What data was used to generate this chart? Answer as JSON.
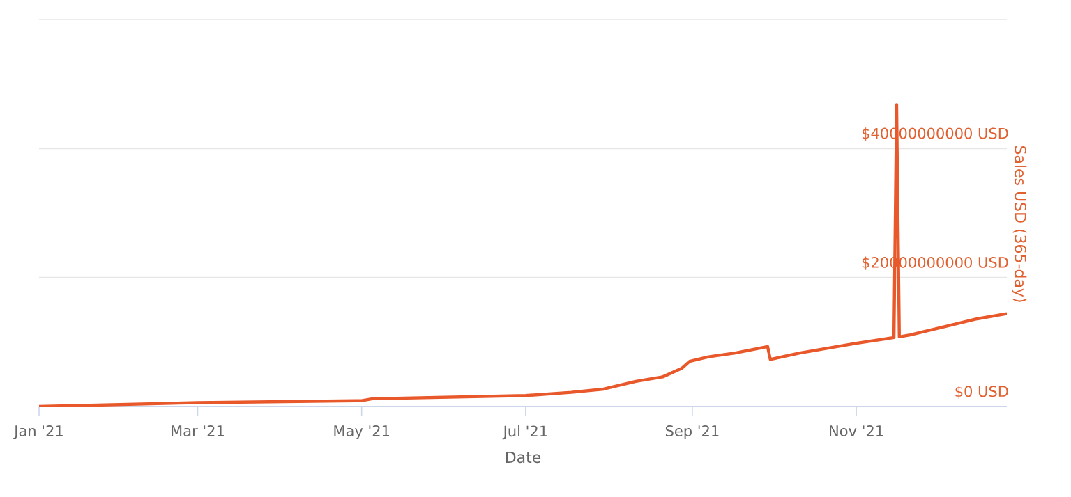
{
  "chart_data": {
    "type": "line",
    "xlabel": "Date",
    "y2label": "Sales USD (365-day)",
    "xlim": [
      "2021-01-01",
      "2021-12-27"
    ],
    "xticks": [
      {
        "value": "2021-01-01",
        "label": "Jan '21"
      },
      {
        "value": "2021-03-01",
        "label": "Mar '21"
      },
      {
        "value": "2021-05-01",
        "label": "May '21"
      },
      {
        "value": "2021-07-01",
        "label": "Jul '21"
      },
      {
        "value": "2021-09-01",
        "label": "Sep '21"
      },
      {
        "value": "2021-11-01",
        "label": "Nov '21"
      }
    ],
    "y2lim": [
      0,
      60000000000
    ],
    "y2ticks": [
      {
        "value": 0,
        "label": "$0 USD"
      },
      {
        "value": 20000000000,
        "label": "$20000000000 USD"
      },
      {
        "value": 40000000000,
        "label": "$40000000000 USD"
      },
      {
        "value": 60000000000,
        "label": null
      }
    ],
    "grid": "y",
    "marker": "none",
    "line_style": "solid",
    "series": [
      {
        "color": "#e8582a",
        "axis": "y2",
        "x": [
          "2021-01-01",
          "2021-03-01",
          "2021-05-01",
          "2021-05-05",
          "2021-07-01",
          "2021-07-18",
          "2021-07-30",
          "2021-08-11",
          "2021-08-21",
          "2021-08-28",
          "2021-08-31",
          "2021-09-07",
          "2021-09-17",
          "2021-09-29",
          "2021-09-30",
          "2021-10-11",
          "2021-11-01",
          "2021-11-15",
          "2021-11-16",
          "2021-11-17",
          "2021-11-21",
          "2021-12-04",
          "2021-12-16",
          "2021-12-27"
        ],
        "values": [
          0,
          600000000,
          900000000,
          1200000000,
          1700000000,
          2200000000,
          2700000000,
          3900000000,
          4600000000,
          5900000000,
          7000000000,
          7700000000,
          8300000000,
          9300000000,
          7300000000,
          8300000000,
          9800000000,
          10700000000,
          46800000000,
          10800000000,
          11100000000,
          12400000000,
          13600000000,
          14400000000
        ]
      }
    ]
  }
}
